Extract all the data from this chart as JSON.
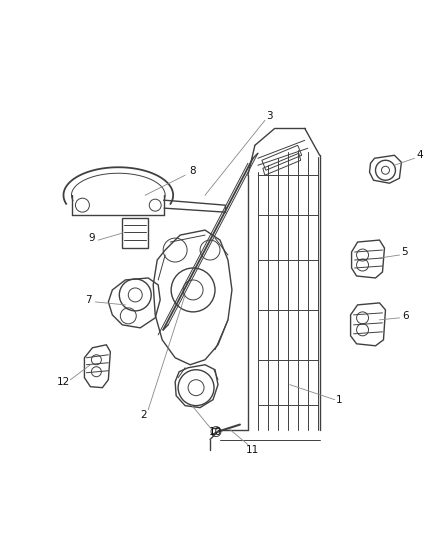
{
  "background_color": "#ffffff",
  "line_color": "#404040",
  "leader_color": "#888888",
  "figsize": [
    4.38,
    5.33
  ],
  "dpi": 100,
  "label_fontsize": 7.5
}
